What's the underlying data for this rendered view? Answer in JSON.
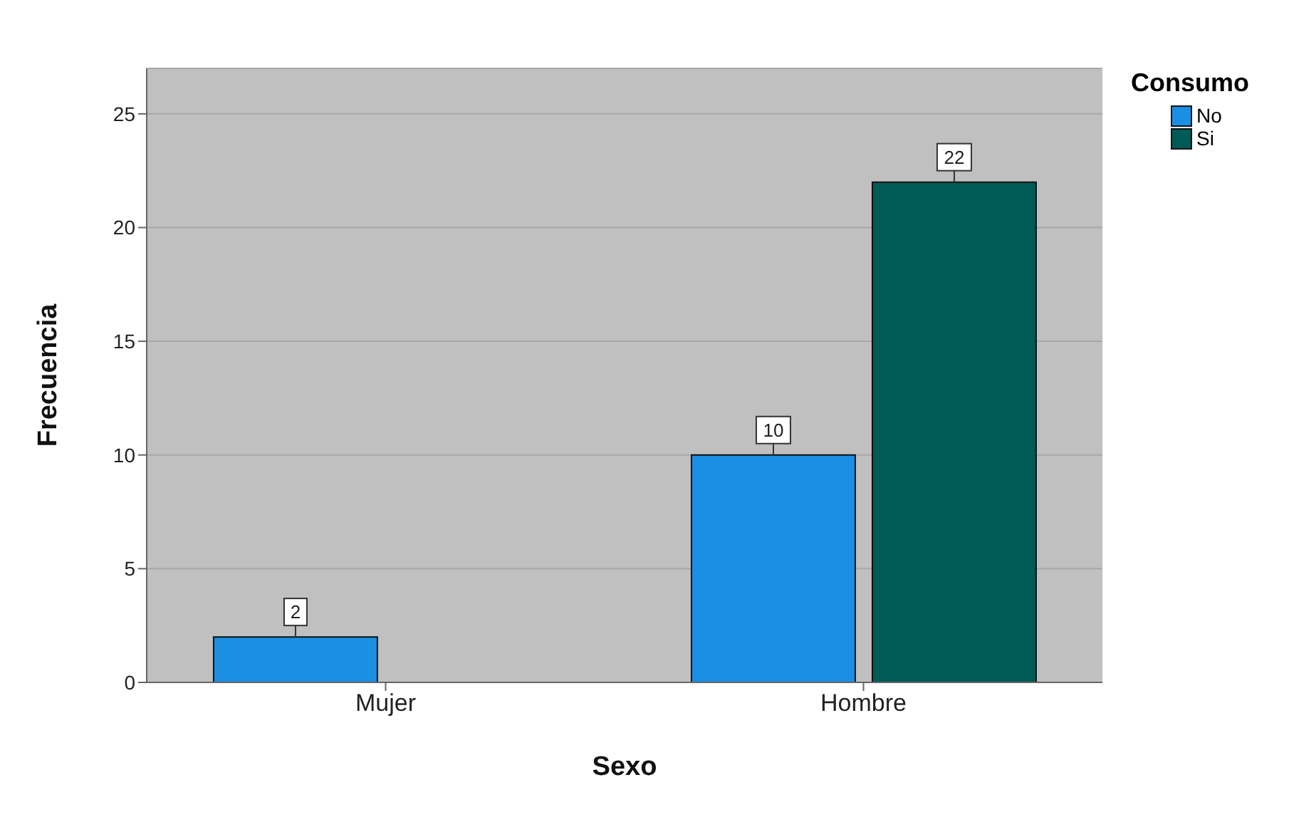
{
  "chart_data": {
    "type": "bar",
    "xlabel": "Sexo",
    "ylabel": "Frecuencia",
    "legend_title": "Consumo",
    "categories": [
      "Mujer",
      "Hombre"
    ],
    "series": [
      {
        "name": "No",
        "color": "#1a8fe3",
        "values": [
          2,
          10
        ]
      },
      {
        "name": "Si",
        "color": "#005a55",
        "values": [
          null,
          22
        ]
      }
    ],
    "ylim": [
      0,
      27
    ],
    "yticks": [
      0,
      5,
      10,
      15,
      20,
      25
    ],
    "grid": "y",
    "legend": "top right",
    "data_labels": true
  }
}
